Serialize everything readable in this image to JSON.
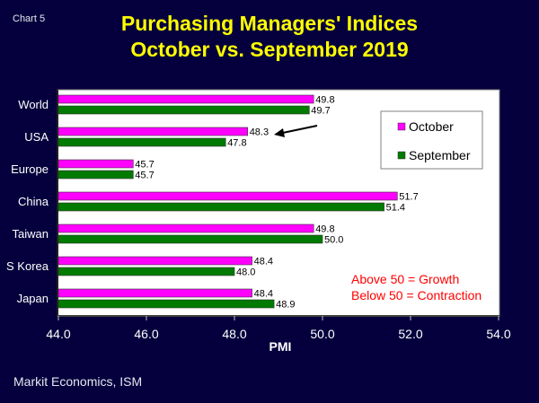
{
  "header": {
    "chart_label": "Chart 5",
    "title_line1": "Purchasing Managers' Indices",
    "title_line2": "October vs. September 2019"
  },
  "footer": {
    "source": "Markit Economics, ISM"
  },
  "colors": {
    "background": "#05003d",
    "title": "#ffff00",
    "october": "#ff00ff",
    "september": "#007a00",
    "annotation": "#ff0000",
    "axis_text": "#e6e6f0"
  },
  "chart_data": {
    "type": "bar",
    "orientation": "horizontal",
    "title": "Purchasing Managers' Indices October vs. September 2019",
    "xlabel": "PMI",
    "ylabel": "",
    "xlim": [
      44.0,
      54.0
    ],
    "x_ticks": [
      "44.0",
      "46.0",
      "48.0",
      "50.0",
      "52.0",
      "54.0"
    ],
    "x_tick_values": [
      44,
      46,
      48,
      50,
      52,
      54
    ],
    "categories": [
      "World",
      "USA",
      "Europe",
      "China",
      "Taiwan",
      "S Korea",
      "Japan"
    ],
    "series": [
      {
        "name": "October",
        "color": "#ff00ff",
        "values": [
          49.8,
          48.3,
          45.7,
          51.7,
          49.8,
          48.4,
          48.4
        ]
      },
      {
        "name": "September",
        "color": "#007a00",
        "values": [
          49.7,
          47.8,
          45.7,
          51.4,
          50.0,
          48.0,
          48.9
        ]
      }
    ],
    "data_labels": true,
    "grid": false,
    "legend": {
      "position": "top-right",
      "entries": [
        "October",
        "September"
      ]
    },
    "annotations": [
      {
        "type": "arrow",
        "target": "USA October",
        "direction": "pointing-left"
      },
      {
        "type": "text",
        "lines": [
          "Above 50 = Growth",
          "Below 50 = Contraction"
        ],
        "position": "bottom-right"
      }
    ]
  }
}
